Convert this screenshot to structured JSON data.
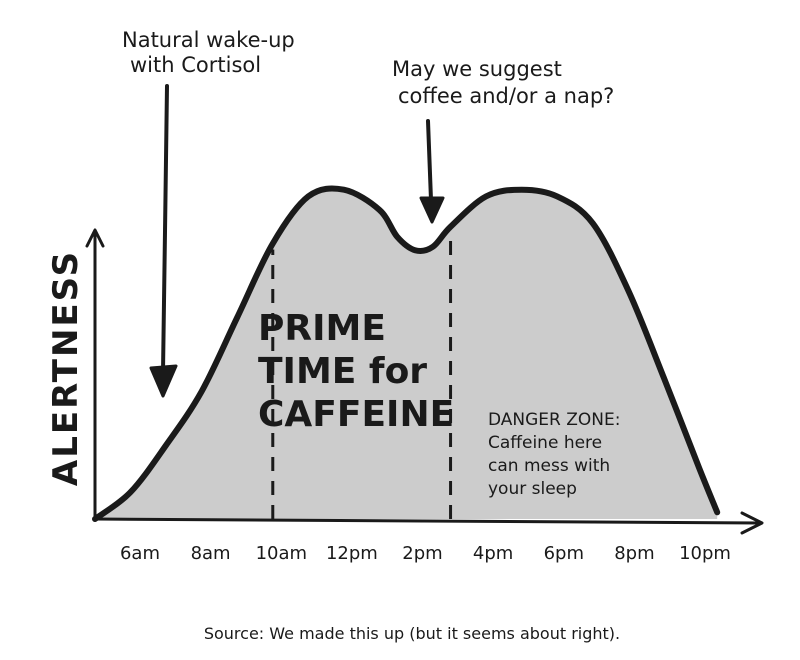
{
  "chart_data": {
    "type": "area",
    "title": "",
    "ylabel": "ALERTNESS",
    "xlabel": "",
    "x_ticks": [
      "6am",
      "8am",
      "10am",
      "12pm",
      "2pm",
      "4pm",
      "6pm",
      "8pm",
      "10pm"
    ],
    "xlim": [
      5,
      23
    ],
    "ylim": [
      0,
      10
    ],
    "grid": false,
    "series": [
      {
        "x": [
          5.0,
          6.0,
          7.0,
          8.0,
          9.0,
          10.0,
          11.0,
          12.0,
          13.0,
          13.5,
          14.0,
          14.5,
          15.0,
          16.0,
          17.0,
          18.0,
          19.0,
          20.0,
          21.0,
          22.0,
          22.5
        ],
        "values": [
          0.0,
          0.8,
          2.2,
          3.8,
          6.0,
          8.2,
          9.6,
          9.8,
          9.2,
          8.4,
          8.0,
          8.1,
          8.7,
          9.6,
          9.8,
          9.6,
          8.8,
          6.8,
          4.2,
          1.5,
          0.2
        ]
      }
    ],
    "fill_color": "#cccccc",
    "line_color": "#1a1a1a",
    "regions": [
      {
        "label_lines": [
          "PRIME",
          "TIME for",
          "CAFFEINE"
        ],
        "x_start": 10.0,
        "x_end": 15.0
      },
      {
        "label_lines": [
          "DANGER ZONE:",
          "Caffeine here",
          "can mess with",
          "your sleep"
        ],
        "x_start": 15.0,
        "x_end": 22.5
      }
    ],
    "annotations": [
      {
        "lines": [
          "Natural wake-up",
          "with Cortisol"
        ],
        "x": 7.9
      },
      {
        "lines": [
          "May we suggest",
          "coffee and/or a nap?"
        ],
        "x": 14.0
      }
    ],
    "source": "Source: We made this up (but it seems about right)."
  }
}
